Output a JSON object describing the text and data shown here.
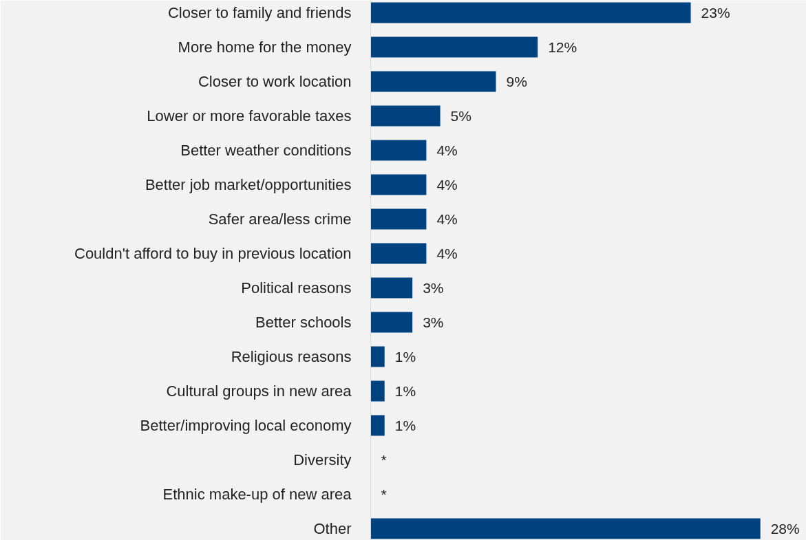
{
  "chart_data": {
    "type": "bar",
    "orientation": "horizontal",
    "categories": [
      "Closer to family and friends",
      "More home for the money",
      "Closer to work location",
      "Lower or more favorable taxes",
      "Better weather conditions",
      "Better job market/opportunities",
      "Safer area/less crime",
      "Couldn't afford to buy in previous location",
      "Political reasons",
      "Better schools",
      "Religious reasons",
      "Cultural groups in new area",
      "Better/improving local economy",
      "Diversity",
      "Ethnic make-up of new area",
      "Other"
    ],
    "values": [
      23,
      12,
      9,
      5,
      4,
      4,
      4,
      4,
      3,
      3,
      1,
      1,
      1,
      0,
      0,
      28
    ],
    "value_labels": [
      "23%",
      "12%",
      "9%",
      "5%",
      "4%",
      "4%",
      "4%",
      "4%",
      "3%",
      "3%",
      "1%",
      "1%",
      "1%",
      "*",
      "*",
      "28%"
    ],
    "color": "#00427f",
    "grid": false
  }
}
